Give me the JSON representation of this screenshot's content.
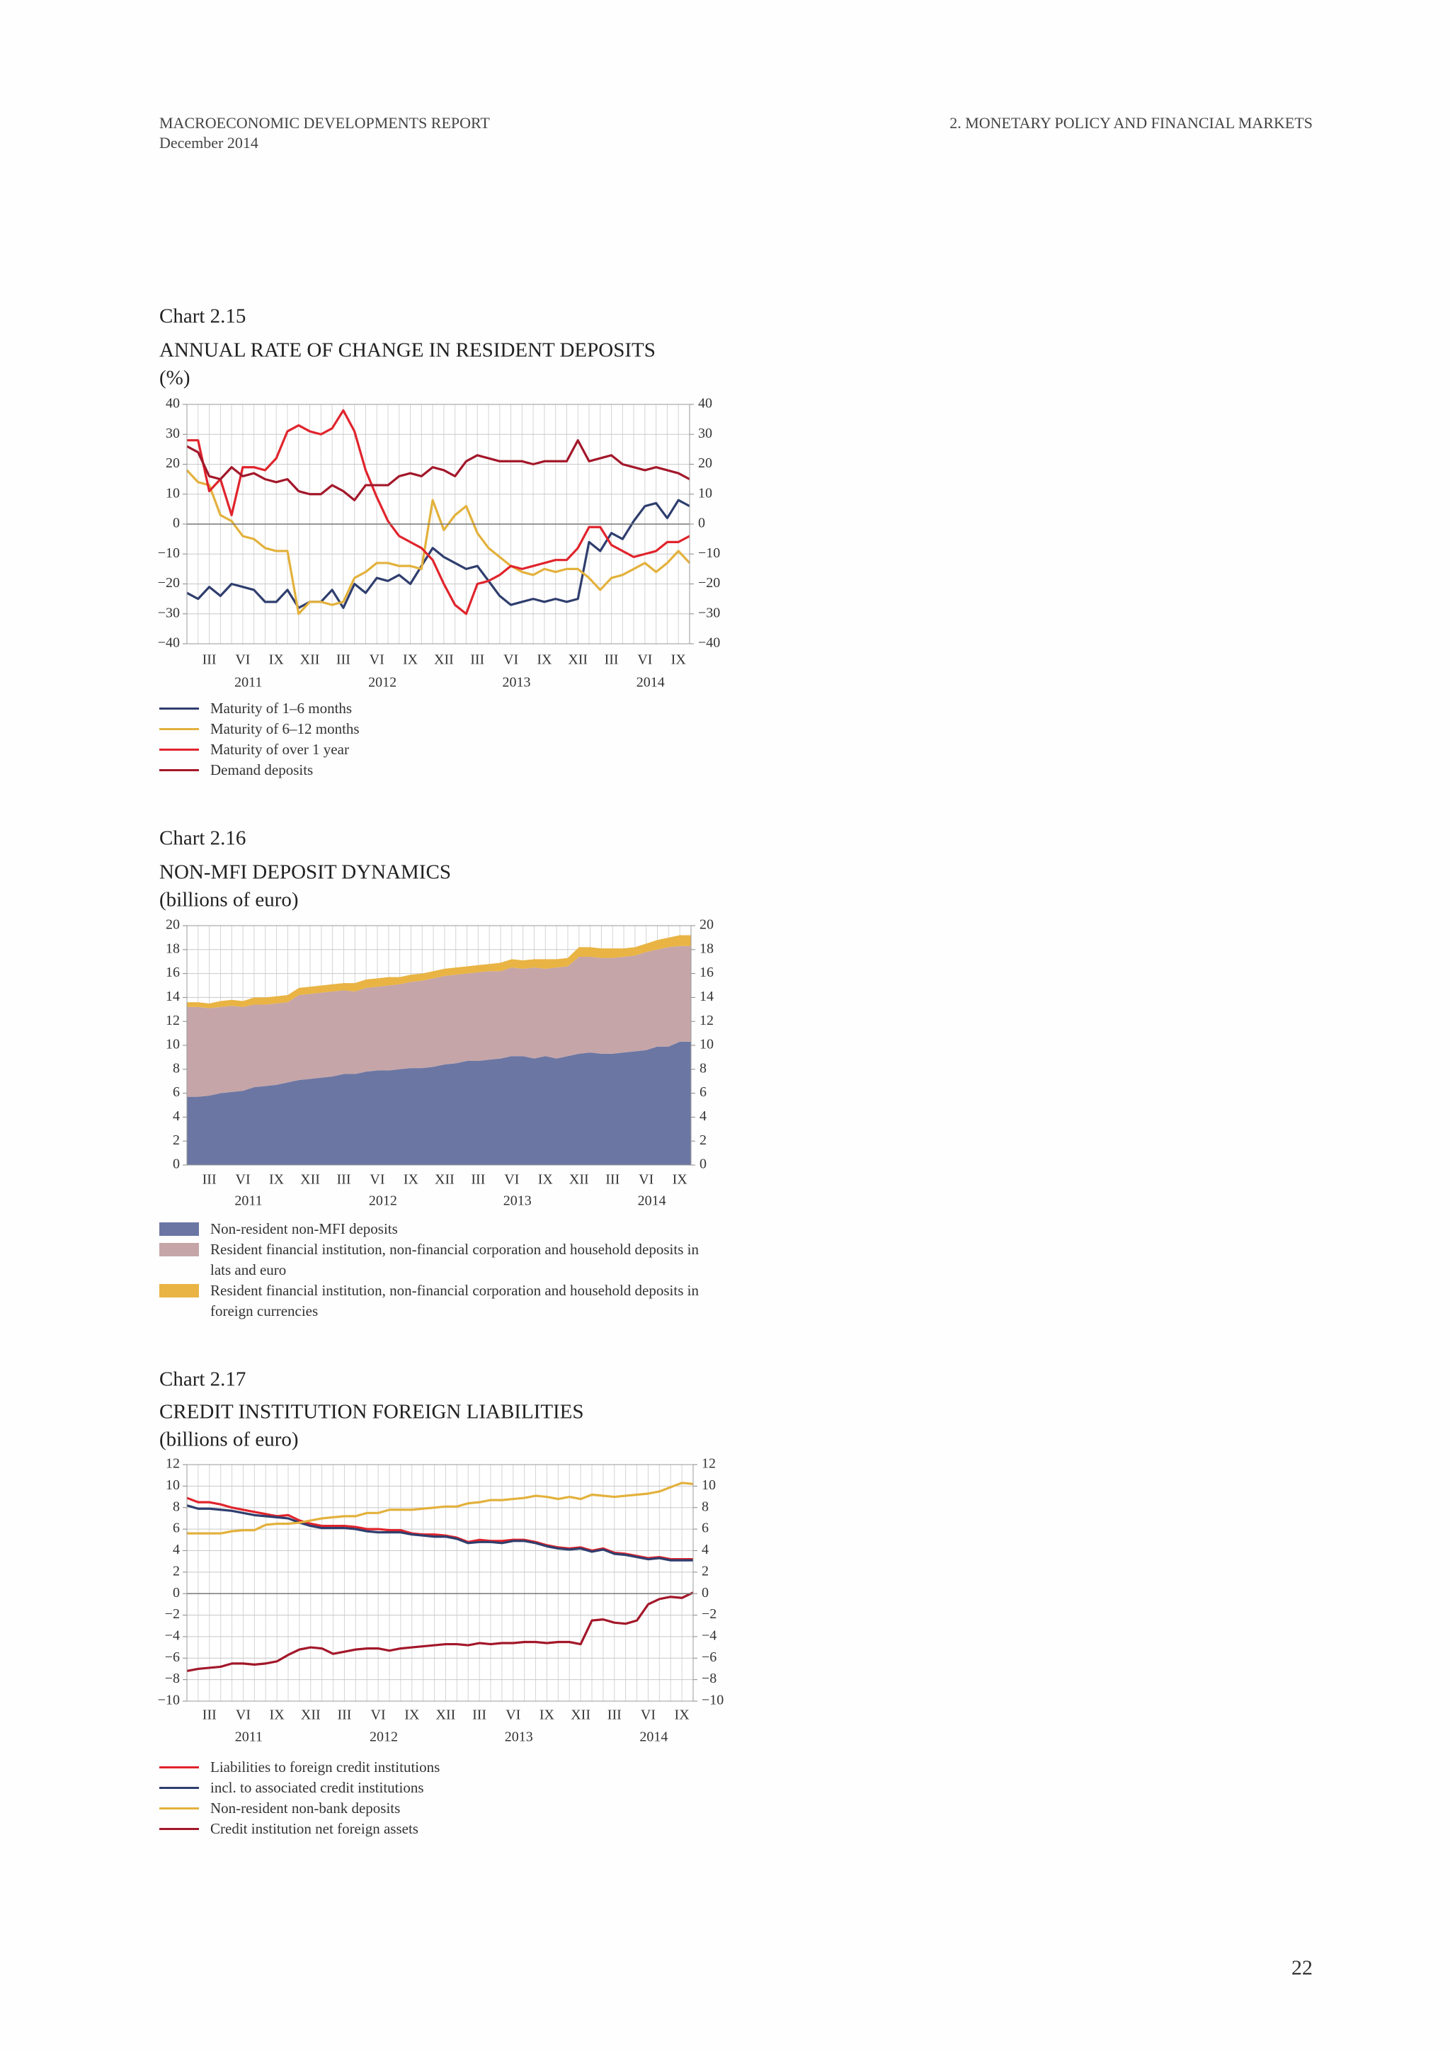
{
  "header": {
    "left_title": "MACROECONOMIC DEVELOPMENTS REPORT",
    "left_date": "December 2014",
    "right_title": "2. MONETARY POLICY AND FINANCIAL MARKETS"
  },
  "page_number": "22",
  "chart_data": [
    {
      "type": "line",
      "label": "Chart 2.15",
      "title": "ANNUAL RATE OF CHANGE IN RESIDENT DEPOSITS",
      "subtitle": "(%)",
      "categories": [
        null,
        null,
        "III",
        null,
        null,
        "VI",
        null,
        null,
        "IX",
        null,
        null,
        "XII",
        null,
        null,
        "III",
        null,
        null,
        "VI",
        null,
        null,
        "IX",
        null,
        null,
        "XII",
        null,
        null,
        "III",
        null,
        null,
        "VI",
        null,
        null,
        "IX",
        null,
        null,
        "XII",
        null,
        null,
        "III",
        null,
        null,
        "VI",
        null,
        null,
        "IX",
        null
      ],
      "years": [
        "2011",
        "2012",
        "2013",
        "2014"
      ],
      "ylim": [
        -40,
        40
      ],
      "yticks": [
        {
          "value": -40,
          "label": "−40"
        },
        {
          "value": -30,
          "label": "−30"
        },
        {
          "value": -20,
          "label": "−20"
        },
        {
          "value": -10,
          "label": "−10"
        },
        0,
        10,
        20,
        30,
        40
      ],
      "grid": true,
      "series": [
        {
          "name": "Maturity of 1–6 months",
          "color": "#2f3e6e",
          "values": [
            -23,
            -25,
            -21,
            -24,
            -20,
            -21,
            -22,
            -26,
            -26,
            -22,
            -28,
            -26,
            -26,
            -22,
            -28,
            -20,
            -23,
            -18,
            -19,
            -17,
            -20,
            -14,
            -8,
            -11,
            -13,
            -15,
            -14,
            -19,
            -24,
            -27,
            -26,
            -25,
            -26,
            -25,
            -26,
            -25,
            -6,
            -9,
            -3,
            -5,
            1,
            6,
            7,
            2,
            8,
            6
          ]
        },
        {
          "name": "Maturity of 6–12 months",
          "color": "#e3b13c",
          "values": [
            18,
            14,
            13,
            3,
            1,
            -4,
            -5,
            -8,
            -9,
            -9,
            -30,
            -26,
            -26,
            -27,
            -26,
            -18,
            -16,
            -13,
            -13,
            -14,
            -14,
            -15,
            8,
            -2,
            3,
            6,
            -3,
            -8,
            -11,
            -14,
            -16,
            -17,
            -15,
            -16,
            -15,
            -15,
            -18,
            -22,
            -18,
            -17,
            -15,
            -13,
            -16,
            -13,
            -9,
            -13
          ]
        },
        {
          "name": "Maturity of over 1 year",
          "color": "#e0242c",
          "values": [
            28,
            28,
            11,
            15,
            3,
            19,
            19,
            18,
            22,
            31,
            33,
            31,
            30,
            32,
            38,
            31,
            18,
            9,
            1,
            -4,
            -6,
            -8,
            -12,
            -20,
            -27,
            -30,
            -20,
            -19,
            -17,
            -14,
            -15,
            -14,
            -13,
            -12,
            -12,
            -8,
            -1,
            -1,
            -7,
            -9,
            -11,
            -10,
            -9,
            -6,
            -6,
            -4
          ]
        },
        {
          "name": "Demand deposits",
          "color": "#a3172a",
          "values": [
            26,
            24,
            16,
            15,
            19,
            16,
            17,
            15,
            14,
            15,
            11,
            10,
            10,
            13,
            11,
            8,
            13,
            13,
            13,
            16,
            17,
            16,
            19,
            18,
            16,
            21,
            23,
            22,
            21,
            21,
            21,
            20,
            21,
            21,
            21,
            28,
            21,
            22,
            23,
            20,
            19,
            18,
            19,
            18,
            17,
            15
          ]
        }
      ]
    },
    {
      "type": "area",
      "label": "Chart 2.16",
      "title": "NON-MFI DEPOSIT DYNAMICS",
      "subtitle": "(billions of euro)",
      "categories": [
        null,
        null,
        "III",
        null,
        null,
        "VI",
        null,
        null,
        "IX",
        null,
        null,
        "XII",
        null,
        null,
        "III",
        null,
        null,
        "VI",
        null,
        null,
        "IX",
        null,
        null,
        "XII",
        null,
        null,
        "III",
        null,
        null,
        "VI",
        null,
        null,
        "IX",
        null,
        null,
        "XII",
        null,
        null,
        "III",
        null,
        null,
        "VI",
        null,
        null,
        "IX",
        null
      ],
      "years": [
        "2011",
        "2012",
        "2013",
        "2014"
      ],
      "ylim": [
        0,
        20
      ],
      "yticks": [
        0,
        2,
        4,
        6,
        8,
        10,
        12,
        14,
        16,
        18,
        20
      ],
      "grid": true,
      "series": [
        {
          "name": "Non-resident non-MFI deposits",
          "color": "#6b76a3",
          "values": [
            5.7,
            5.7,
            5.8,
            6.0,
            6.1,
            6.2,
            6.5,
            6.6,
            6.7,
            6.9,
            7.1,
            7.2,
            7.3,
            7.4,
            7.6,
            7.6,
            7.8,
            7.9,
            7.9,
            8.0,
            8.1,
            8.1,
            8.2,
            8.4,
            8.5,
            8.7,
            8.7,
            8.8,
            8.9,
            9.1,
            9.1,
            8.9,
            9.1,
            8.9,
            9.1,
            9.3,
            9.4,
            9.3,
            9.3,
            9.4,
            9.5,
            9.6,
            9.9,
            9.9,
            10.3,
            10.3
          ]
        },
        {
          "name": "Resident financial institution, non-financial corporation and household deposits in lats and euro",
          "color": "#c5a5a8",
          "values": [
            7.5,
            7.5,
            7.3,
            7.2,
            7.2,
            7.0,
            6.9,
            6.8,
            6.8,
            6.7,
            7.1,
            7.1,
            7.1,
            7.1,
            7.0,
            6.9,
            7.0,
            7.0,
            7.1,
            7.1,
            7.2,
            7.3,
            7.4,
            7.4,
            7.4,
            7.3,
            7.4,
            7.4,
            7.3,
            7.4,
            7.3,
            7.6,
            7.3,
            7.6,
            7.5,
            8.1,
            8.0,
            8.0,
            8.0,
            8.0,
            8.0,
            8.2,
            8.1,
            8.3,
            8.0,
            8.0
          ]
        },
        {
          "name": "Resident financial institution, non-financial corporation and household deposits in foreign currencies",
          "color": "#e9b444",
          "values": [
            0.4,
            0.4,
            0.4,
            0.5,
            0.5,
            0.5,
            0.6,
            0.6,
            0.6,
            0.6,
            0.6,
            0.6,
            0.6,
            0.6,
            0.6,
            0.7,
            0.7,
            0.7,
            0.7,
            0.6,
            0.6,
            0.6,
            0.6,
            0.6,
            0.6,
            0.6,
            0.6,
            0.6,
            0.7,
            0.7,
            0.7,
            0.7,
            0.8,
            0.7,
            0.7,
            0.8,
            0.8,
            0.8,
            0.8,
            0.7,
            0.7,
            0.7,
            0.8,
            0.8,
            0.9,
            0.9
          ]
        }
      ]
    },
    {
      "type": "line",
      "label": "Chart 2.17",
      "title": "CREDIT INSTITUTION FOREIGN LIABILITIES",
      "subtitle": "(billions of euro)",
      "categories": [
        null,
        null,
        "III",
        null,
        null,
        "VI",
        null,
        null,
        "IX",
        null,
        null,
        "XII",
        null,
        null,
        "III",
        null,
        null,
        "VI",
        null,
        null,
        "IX",
        null,
        null,
        "XII",
        null,
        null,
        "III",
        null,
        null,
        "VI",
        null,
        null,
        "IX",
        null,
        null,
        "XII",
        null,
        null,
        "III",
        null,
        null,
        "VI",
        null,
        null,
        "IX",
        null
      ],
      "years": [
        "2011",
        "2012",
        "2013",
        "2014"
      ],
      "ylim": [
        -10,
        12
      ],
      "yticks": [
        {
          "value": -10,
          "label": "−10"
        },
        {
          "value": -8,
          "label": "−8"
        },
        {
          "value": -6,
          "label": "−6"
        },
        {
          "value": -4,
          "label": "−4"
        },
        {
          "value": -2,
          "label": "−2"
        },
        0,
        2,
        4,
        6,
        8,
        10,
        12
      ],
      "grid": true,
      "series": [
        {
          "name": "Liabilities to foreign credit institutions",
          "color": "#e0242c",
          "values": [
            8.9,
            8.5,
            8.5,
            8.3,
            8.0,
            7.8,
            7.6,
            7.4,
            7.2,
            7.3,
            6.8,
            6.5,
            6.3,
            6.3,
            6.3,
            6.2,
            6.0,
            6.0,
            5.9,
            5.9,
            5.6,
            5.5,
            5.5,
            5.4,
            5.2,
            4.8,
            5.0,
            4.9,
            4.9,
            5.0,
            5.0,
            4.8,
            4.5,
            4.3,
            4.2,
            4.3,
            4.0,
            4.2,
            3.8,
            3.7,
            3.5,
            3.3,
            3.4,
            3.2,
            3.2,
            3.2
          ]
        },
        {
          "name": "incl. to associated credit institutions",
          "color": "#2f3e6e",
          "values": [
            8.2,
            7.9,
            7.9,
            7.8,
            7.7,
            7.5,
            7.3,
            7.2,
            7.1,
            7.0,
            6.6,
            6.3,
            6.1,
            6.1,
            6.1,
            6.0,
            5.8,
            5.7,
            5.7,
            5.7,
            5.5,
            5.4,
            5.3,
            5.3,
            5.1,
            4.7,
            4.8,
            4.8,
            4.7,
            4.9,
            4.9,
            4.7,
            4.4,
            4.2,
            4.1,
            4.2,
            3.9,
            4.1,
            3.7,
            3.6,
            3.4,
            3.2,
            3.3,
            3.1,
            3.1,
            3.1
          ]
        },
        {
          "name": "Non-resident non-bank deposits",
          "color": "#e3b13c",
          "values": [
            5.6,
            5.6,
            5.6,
            5.6,
            5.8,
            5.9,
            5.9,
            6.4,
            6.5,
            6.5,
            6.6,
            6.8,
            7.0,
            7.1,
            7.2,
            7.2,
            7.5,
            7.5,
            7.8,
            7.8,
            7.8,
            7.9,
            8.0,
            8.1,
            8.1,
            8.4,
            8.5,
            8.7,
            8.7,
            8.8,
            8.9,
            9.1,
            9.0,
            8.8,
            9.0,
            8.8,
            9.2,
            9.1,
            9.0,
            9.1,
            9.2,
            9.3,
            9.5,
            9.9,
            10.3,
            10.2
          ]
        },
        {
          "name": "Credit institution net foreign assets",
          "color": "#a3172a",
          "values": [
            -7.2,
            -7.0,
            -6.9,
            -6.8,
            -6.5,
            -6.5,
            -6.6,
            -6.5,
            -6.3,
            -5.7,
            -5.2,
            -5.0,
            -5.1,
            -5.6,
            -5.4,
            -5.2,
            -5.1,
            -5.1,
            -5.3,
            -5.1,
            -5.0,
            -4.9,
            -4.8,
            -4.7,
            -4.7,
            -4.8,
            -4.6,
            -4.7,
            -4.6,
            -4.6,
            -4.5,
            -4.5,
            -4.6,
            -4.5,
            -4.5,
            -4.7,
            -2.5,
            -2.4,
            -2.7,
            -2.8,
            -2.5,
            -1.0,
            -0.5,
            -0.3,
            -0.4,
            0.1
          ]
        }
      ]
    }
  ]
}
